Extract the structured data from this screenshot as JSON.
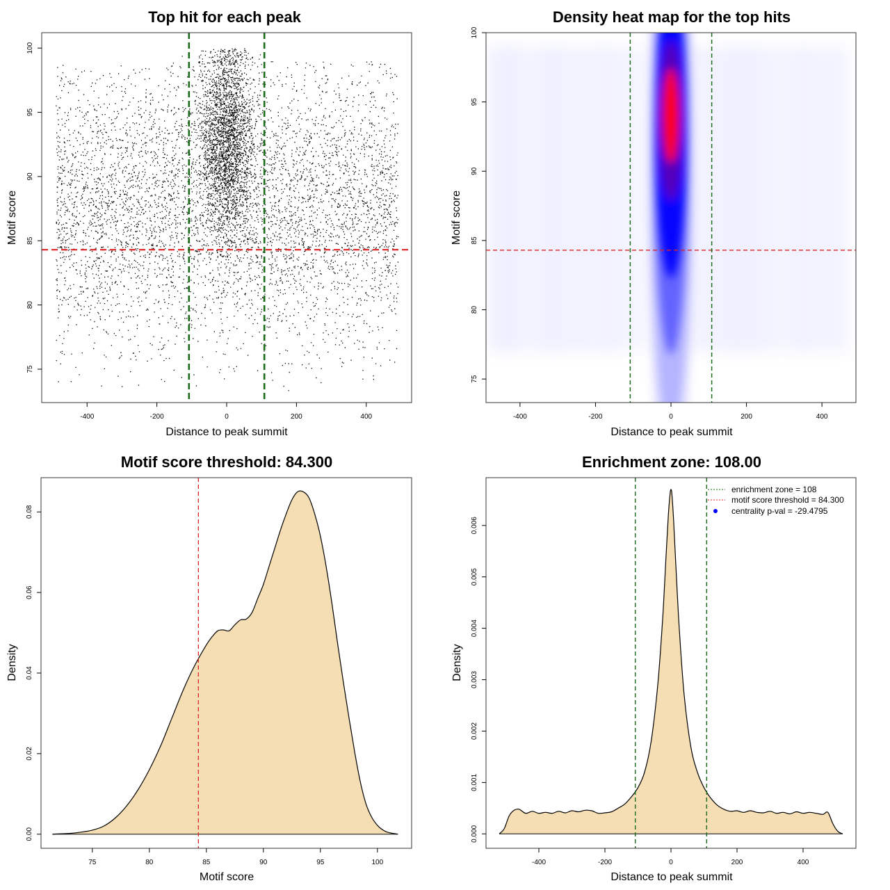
{
  "colors": {
    "axis": "#000000",
    "threshold_red": "#dd2222",
    "zone_green": "#1a6b1a",
    "density_fill": "#f5deb3",
    "heat_low": "#ffffff",
    "heat_mid": "#0000ff",
    "heat_high": "#ff0000"
  },
  "chart_data": [
    {
      "id": "scatter",
      "type": "scatter",
      "title": "Top hit for each peak",
      "xlabel": "Distance to peak summit",
      "ylabel": "Motif score",
      "xlim": [
        -530,
        530
      ],
      "ylim": [
        72.4,
        101.2
      ],
      "xticks": [
        -400,
        -200,
        0,
        200,
        400
      ],
      "yticks": [
        75,
        80,
        85,
        90,
        95,
        100
      ],
      "hline": 84.3,
      "vlines": [
        -108,
        108
      ],
      "points_note": "approximately 20000 top hits; dense cluster centered near distance 0 with scores 84-100, uniform background from -490 to 490 and scores 74-99"
    },
    {
      "id": "heatmap",
      "type": "heatmap",
      "title": "Density heat map for the top hits",
      "xlabel": "Distance to peak summit",
      "ylabel": "Motif score",
      "xlim": [
        -490,
        490
      ],
      "ylim": [
        73.3,
        100.0
      ],
      "xticks": [
        -400,
        -200,
        0,
        200,
        400
      ],
      "yticks": [
        75,
        80,
        85,
        90,
        95,
        100
      ],
      "hline": 84.3,
      "vlines": [
        -108,
        108
      ],
      "peak": {
        "x": 0,
        "y": 94.0
      }
    },
    {
      "id": "score_density",
      "type": "area",
      "title": "Motif score threshold: 84.300",
      "xlabel": "Motif score",
      "ylabel": "Density",
      "xlim": [
        70.5,
        103.0
      ],
      "ylim": [
        -0.0035,
        0.0885
      ],
      "xticks": [
        75,
        80,
        85,
        90,
        95,
        100
      ],
      "yticks": [
        0.0,
        0.02,
        0.04,
        0.06,
        0.08
      ],
      "ytick_labels": [
        "0.00",
        "0.02",
        "0.04",
        "0.06",
        "0.08"
      ],
      "vline": 84.3,
      "x": [
        71.5,
        73,
        74,
        75,
        76,
        77,
        78,
        79,
        80,
        81,
        82,
        83,
        84,
        85,
        85.5,
        86,
        86.5,
        87,
        87.5,
        88,
        88.5,
        89,
        89.5,
        90,
        90.5,
        91,
        91.5,
        92,
        92.5,
        93,
        93.5,
        94,
        94.5,
        95,
        95.5,
        96,
        96.5,
        97,
        97.5,
        98,
        98.5,
        99,
        99.5,
        100,
        100.5,
        101,
        101.8
      ],
      "y": [
        0.0,
        0.0002,
        0.0005,
        0.001,
        0.002,
        0.004,
        0.007,
        0.011,
        0.016,
        0.022,
        0.029,
        0.036,
        0.042,
        0.047,
        0.049,
        0.0505,
        0.0507,
        0.0505,
        0.052,
        0.0532,
        0.0534,
        0.055,
        0.0585,
        0.062,
        0.0665,
        0.071,
        0.0755,
        0.0795,
        0.083,
        0.085,
        0.085,
        0.0835,
        0.0795,
        0.074,
        0.0665,
        0.0575,
        0.0475,
        0.038,
        0.029,
        0.0205,
        0.013,
        0.0075,
        0.0042,
        0.0022,
        0.001,
        0.0004,
        0.0
      ]
    },
    {
      "id": "distance_density",
      "type": "area",
      "title": "Enrichment zone: 108.00",
      "xlabel": "Distance to peak summit",
      "ylabel": "Density",
      "xlim": [
        -560,
        560
      ],
      "ylim": [
        -0.00028,
        0.00693
      ],
      "xticks": [
        -400,
        -200,
        0,
        200,
        400
      ],
      "yticks": [
        0.0,
        0.001,
        0.002,
        0.003,
        0.004,
        0.005,
        0.006
      ],
      "ytick_labels": [
        "0.000",
        "0.001",
        "0.002",
        "0.003",
        "0.004",
        "0.005",
        "0.006"
      ],
      "vlines": [
        -108,
        108
      ],
      "x": [
        -520,
        -505,
        -490,
        -475,
        -460,
        -440,
        -420,
        -400,
        -380,
        -360,
        -340,
        -320,
        -300,
        -280,
        -260,
        -240,
        -220,
        -200,
        -180,
        -160,
        -140,
        -120,
        -100,
        -80,
        -60,
        -40,
        -25,
        -15,
        -8,
        -3,
        0,
        3,
        8,
        15,
        25,
        40,
        60,
        80,
        100,
        120,
        140,
        160,
        180,
        200,
        220,
        240,
        260,
        280,
        300,
        320,
        340,
        360,
        380,
        400,
        420,
        440,
        460,
        475,
        490,
        505,
        520
      ],
      "y": [
        0.0,
        0.0001,
        0.00035,
        0.00046,
        0.00048,
        0.0004,
        0.00044,
        0.0004,
        0.00042,
        0.0004,
        0.00044,
        0.00041,
        0.00045,
        0.00043,
        0.00046,
        0.00045,
        0.0004,
        0.00041,
        0.00043,
        0.0005,
        0.00058,
        0.00072,
        0.0009,
        0.0012,
        0.0018,
        0.0029,
        0.0042,
        0.0054,
        0.0062,
        0.0066,
        0.0067,
        0.0066,
        0.0061,
        0.0052,
        0.004,
        0.0027,
        0.0017,
        0.0012,
        0.0009,
        0.0007,
        0.00056,
        0.00048,
        0.00044,
        0.00045,
        0.00042,
        0.00045,
        0.00042,
        0.00041,
        0.00044,
        0.0004,
        0.00042,
        0.00039,
        0.00043,
        0.0004,
        0.00042,
        0.0004,
        0.00038,
        0.00042,
        0.0002,
        5e-05,
        0.0
      ],
      "legend": {
        "position": "top-right",
        "entries": [
          {
            "label": "enrichment zone = 108",
            "style": "dotted",
            "color": "#1a6b1a"
          },
          {
            "label": "motif score threshold = 84.300",
            "style": "dotted",
            "color": "#dd2222"
          },
          {
            "label": "centrality p-val = -29.4795",
            "style": "point",
            "color": "#0000ff"
          }
        ]
      }
    }
  ]
}
